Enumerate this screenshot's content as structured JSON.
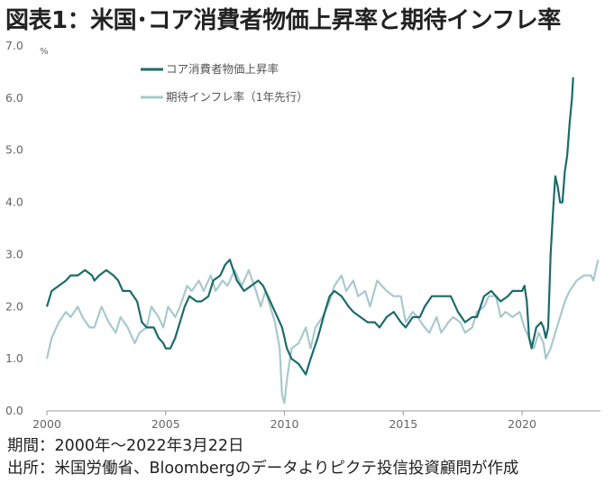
{
  "title": "図表1：米国･コア消費者物価上昇率と期待インフレ率",
  "notes": {
    "period": "期間：2000年～2022年3月22日",
    "source": "出所：米国労働省、Bloombergのデータよりピクテ投信投資顧問が作成"
  },
  "chart_data": {
    "type": "line",
    "unit": "%",
    "xlim": [
      2000,
      2023.3
    ],
    "ylim": [
      0,
      7
    ],
    "x_ticks": [
      "2000",
      "2005",
      "2010",
      "2015",
      "2020"
    ],
    "y_ticks": [
      "0.0",
      "1.0",
      "2.0",
      "3.0",
      "4.0",
      "5.0",
      "6.0",
      "7.0"
    ],
    "legend_position": "top-left",
    "grid": false,
    "series": [
      {
        "name": "コア消費者物価上昇率",
        "color": "#1b6b6b",
        "points": [
          [
            2000.0,
            2.0
          ],
          [
            2000.2,
            2.3
          ],
          [
            2000.5,
            2.4
          ],
          [
            2000.8,
            2.5
          ],
          [
            2001.0,
            2.6
          ],
          [
            2001.3,
            2.6
          ],
          [
            2001.6,
            2.7
          ],
          [
            2001.9,
            2.6
          ],
          [
            2002.0,
            2.5
          ],
          [
            2002.2,
            2.6
          ],
          [
            2002.5,
            2.7
          ],
          [
            2002.8,
            2.6
          ],
          [
            2003.0,
            2.5
          ],
          [
            2003.2,
            2.3
          ],
          [
            2003.5,
            2.3
          ],
          [
            2003.8,
            2.1
          ],
          [
            2004.0,
            1.7
          ],
          [
            2004.2,
            1.6
          ],
          [
            2004.5,
            1.6
          ],
          [
            2004.7,
            1.4
          ],
          [
            2004.9,
            1.3
          ],
          [
            2005.0,
            1.2
          ],
          [
            2005.2,
            1.2
          ],
          [
            2005.4,
            1.4
          ],
          [
            2005.6,
            1.7
          ],
          [
            2005.8,
            2.0
          ],
          [
            2006.0,
            2.2
          ],
          [
            2006.3,
            2.1
          ],
          [
            2006.5,
            2.1
          ],
          [
            2006.8,
            2.2
          ],
          [
            2007.0,
            2.5
          ],
          [
            2007.3,
            2.6
          ],
          [
            2007.5,
            2.8
          ],
          [
            2007.7,
            2.9
          ],
          [
            2008.0,
            2.5
          ],
          [
            2008.3,
            2.3
          ],
          [
            2008.6,
            2.4
          ],
          [
            2008.9,
            2.5
          ],
          [
            2009.1,
            2.4
          ],
          [
            2009.3,
            2.2
          ],
          [
            2009.6,
            1.9
          ],
          [
            2009.9,
            1.6
          ],
          [
            2010.1,
            1.2
          ],
          [
            2010.3,
            1.0
          ],
          [
            2010.6,
            0.9
          ],
          [
            2010.9,
            0.7
          ],
          [
            2011.1,
            1.0
          ],
          [
            2011.4,
            1.4
          ],
          [
            2011.7,
            1.9
          ],
          [
            2011.9,
            2.2
          ],
          [
            2012.1,
            2.3
          ],
          [
            2012.4,
            2.2
          ],
          [
            2012.7,
            2.0
          ],
          [
            2012.9,
            1.9
          ],
          [
            2013.2,
            1.8
          ],
          [
            2013.5,
            1.7
          ],
          [
            2013.8,
            1.7
          ],
          [
            2014.0,
            1.6
          ],
          [
            2014.3,
            1.8
          ],
          [
            2014.6,
            1.9
          ],
          [
            2014.9,
            1.7
          ],
          [
            2015.1,
            1.6
          ],
          [
            2015.4,
            1.8
          ],
          [
            2015.7,
            1.8
          ],
          [
            2015.9,
            2.0
          ],
          [
            2016.2,
            2.2
          ],
          [
            2016.5,
            2.2
          ],
          [
            2016.8,
            2.2
          ],
          [
            2017.0,
            2.2
          ],
          [
            2017.3,
            1.9
          ],
          [
            2017.6,
            1.7
          ],
          [
            2017.9,
            1.8
          ],
          [
            2018.1,
            1.8
          ],
          [
            2018.4,
            2.2
          ],
          [
            2018.7,
            2.3
          ],
          [
            2018.9,
            2.2
          ],
          [
            2019.1,
            2.1
          ],
          [
            2019.4,
            2.2
          ],
          [
            2019.6,
            2.3
          ],
          [
            2019.9,
            2.3
          ],
          [
            2020.0,
            2.3
          ],
          [
            2020.1,
            2.4
          ],
          [
            2020.2,
            2.1
          ],
          [
            2020.3,
            1.4
          ],
          [
            2020.4,
            1.2
          ],
          [
            2020.6,
            1.6
          ],
          [
            2020.8,
            1.7
          ],
          [
            2020.9,
            1.6
          ],
          [
            2021.0,
            1.4
          ],
          [
            2021.1,
            1.6
          ],
          [
            2021.2,
            3.0
          ],
          [
            2021.3,
            3.8
          ],
          [
            2021.4,
            4.5
          ],
          [
            2021.5,
            4.3
          ],
          [
            2021.6,
            4.0
          ],
          [
            2021.7,
            4.0
          ],
          [
            2021.8,
            4.6
          ],
          [
            2021.9,
            4.9
          ],
          [
            2022.0,
            5.5
          ],
          [
            2022.1,
            6.0
          ],
          [
            2022.15,
            6.4
          ]
        ]
      },
      {
        "name": "期待インフレ率（1年先行）",
        "color": "#a9c9cc",
        "points": [
          [
            2000.0,
            1.0
          ],
          [
            2000.2,
            1.4
          ],
          [
            2000.5,
            1.7
          ],
          [
            2000.8,
            1.9
          ],
          [
            2001.0,
            1.8
          ],
          [
            2001.3,
            2.0
          ],
          [
            2001.5,
            1.8
          ],
          [
            2001.8,
            1.6
          ],
          [
            2002.0,
            1.6
          ],
          [
            2002.3,
            2.0
          ],
          [
            2002.6,
            1.7
          ],
          [
            2002.9,
            1.5
          ],
          [
            2003.1,
            1.8
          ],
          [
            2003.4,
            1.6
          ],
          [
            2003.7,
            1.3
          ],
          [
            2003.9,
            1.5
          ],
          [
            2004.2,
            1.6
          ],
          [
            2004.4,
            2.0
          ],
          [
            2004.7,
            1.8
          ],
          [
            2004.9,
            1.6
          ],
          [
            2005.1,
            2.0
          ],
          [
            2005.4,
            1.8
          ],
          [
            2005.6,
            2.0
          ],
          [
            2005.9,
            2.4
          ],
          [
            2006.1,
            2.3
          ],
          [
            2006.4,
            2.5
          ],
          [
            2006.6,
            2.3
          ],
          [
            2006.9,
            2.6
          ],
          [
            2007.1,
            2.3
          ],
          [
            2007.4,
            2.5
          ],
          [
            2007.6,
            2.4
          ],
          [
            2007.9,
            2.7
          ],
          [
            2008.2,
            2.4
          ],
          [
            2008.5,
            2.7
          ],
          [
            2008.8,
            2.3
          ],
          [
            2009.0,
            2.0
          ],
          [
            2009.2,
            2.3
          ],
          [
            2009.4,
            2.0
          ],
          [
            2009.6,
            1.7
          ],
          [
            2009.8,
            1.2
          ],
          [
            2009.9,
            0.3
          ],
          [
            2010.0,
            0.15
          ],
          [
            2010.1,
            0.6
          ],
          [
            2010.3,
            1.2
          ],
          [
            2010.6,
            1.3
          ],
          [
            2010.9,
            1.6
          ],
          [
            2011.1,
            1.2
          ],
          [
            2011.3,
            1.6
          ],
          [
            2011.6,
            1.8
          ],
          [
            2011.9,
            2.1
          ],
          [
            2012.1,
            2.4
          ],
          [
            2012.4,
            2.6
          ],
          [
            2012.6,
            2.3
          ],
          [
            2012.9,
            2.5
          ],
          [
            2013.1,
            2.2
          ],
          [
            2013.4,
            2.3
          ],
          [
            2013.6,
            2.0
          ],
          [
            2013.9,
            2.5
          ],
          [
            2014.1,
            2.4
          ],
          [
            2014.3,
            2.3
          ],
          [
            2014.6,
            2.2
          ],
          [
            2014.9,
            2.2
          ],
          [
            2015.1,
            1.7
          ],
          [
            2015.4,
            1.9
          ],
          [
            2015.6,
            1.8
          ],
          [
            2015.9,
            1.6
          ],
          [
            2016.1,
            1.5
          ],
          [
            2016.4,
            1.8
          ],
          [
            2016.6,
            1.5
          ],
          [
            2016.9,
            1.7
          ],
          [
            2017.1,
            1.8
          ],
          [
            2017.4,
            1.7
          ],
          [
            2017.6,
            1.5
          ],
          [
            2017.9,
            1.6
          ],
          [
            2018.1,
            1.9
          ],
          [
            2018.4,
            2.0
          ],
          [
            2018.6,
            2.2
          ],
          [
            2018.9,
            2.2
          ],
          [
            2019.1,
            1.8
          ],
          [
            2019.3,
            1.9
          ],
          [
            2019.6,
            1.8
          ],
          [
            2019.9,
            1.9
          ],
          [
            2020.1,
            1.6
          ],
          [
            2020.3,
            1.4
          ],
          [
            2020.5,
            1.2
          ],
          [
            2020.7,
            1.5
          ],
          [
            2020.9,
            1.3
          ],
          [
            2021.0,
            1.0
          ],
          [
            2021.2,
            1.2
          ],
          [
            2021.4,
            1.5
          ],
          [
            2021.6,
            1.8
          ],
          [
            2021.8,
            2.1
          ],
          [
            2022.0,
            2.3
          ],
          [
            2022.3,
            2.5
          ],
          [
            2022.6,
            2.6
          ],
          [
            2022.9,
            2.6
          ],
          [
            2023.0,
            2.5
          ],
          [
            2023.2,
            2.9
          ]
        ]
      }
    ]
  }
}
